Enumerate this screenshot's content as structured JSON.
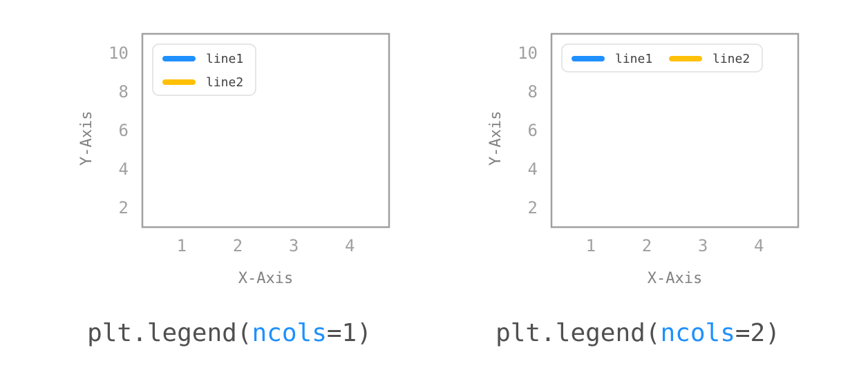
{
  "colors": {
    "line1": "#1e90ff",
    "line2": "#ffc107",
    "frame": "#a0a0a0",
    "tick_text": "#a0a0a0",
    "axis_label": "#808080",
    "caption": "#505050",
    "caption_param": "#1e90ff",
    "legend_border": "#dddddd"
  },
  "chart_data": [
    {
      "type": "line",
      "series": [
        {
          "name": "line1",
          "color": "#1e90ff",
          "values": []
        },
        {
          "name": "line2",
          "color": "#ffc107",
          "values": []
        }
      ],
      "xlabel": "X-Axis",
      "ylabel": "Y-Axis",
      "xlim": [
        0.3,
        4.7
      ],
      "ylim": [
        1,
        11
      ],
      "xticks": [
        "1",
        "2",
        "3",
        "4"
      ],
      "yticks": [
        "2",
        "4",
        "6",
        "8",
        "10"
      ],
      "xtick_values": [
        1,
        2,
        3,
        4
      ],
      "ytick_values": [
        2,
        4,
        6,
        8,
        10
      ],
      "grid": false,
      "legend": {
        "placement": "upper-left",
        "ncols": 1
      },
      "caption": {
        "prefix": "plt.legend(",
        "param": "ncols",
        "suffix": "=1)"
      }
    },
    {
      "type": "line",
      "series": [
        {
          "name": "line1",
          "color": "#1e90ff",
          "values": []
        },
        {
          "name": "line2",
          "color": "#ffc107",
          "values": []
        }
      ],
      "xlabel": "X-Axis",
      "ylabel": "Y-Axis",
      "xlim": [
        0.3,
        4.7
      ],
      "ylim": [
        1,
        11
      ],
      "xticks": [
        "1",
        "2",
        "3",
        "4"
      ],
      "yticks": [
        "2",
        "4",
        "6",
        "8",
        "10"
      ],
      "xtick_values": [
        1,
        2,
        3,
        4
      ],
      "ytick_values": [
        2,
        4,
        6,
        8,
        10
      ],
      "grid": false,
      "legend": {
        "placement": "upper-left",
        "ncols": 2
      },
      "caption": {
        "prefix": "plt.legend(",
        "param": "ncols",
        "suffix": "=2)"
      }
    }
  ]
}
